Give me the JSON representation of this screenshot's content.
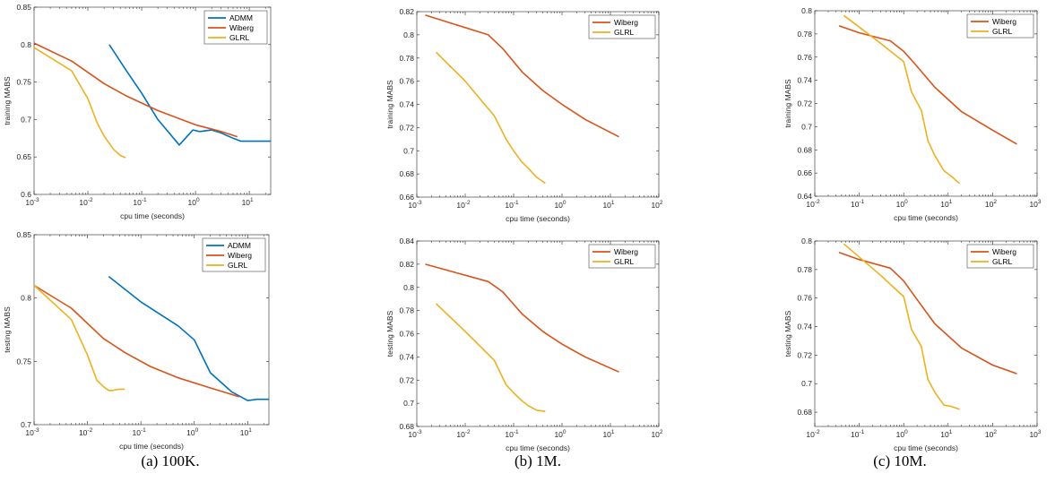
{
  "captions": [
    "(a) 100K.",
    "(b) 1M.",
    "(c) 10M."
  ],
  "colors": {
    "ADMM": "#0072BD",
    "Wiberg": "#D95319",
    "GLRL": "#EDB120",
    "axis": "#262626",
    "text": "#262626"
  },
  "chart_data": [
    {
      "type": "line",
      "id": "a-top",
      "xlabel": "cpu time (seconds)",
      "ylabel": "training MABS",
      "xscale": "log",
      "xlim": [
        0.001,
        25
      ],
      "ylim": [
        0.6,
        0.85
      ],
      "xticks": [
        0.001,
        0.01,
        0.1,
        1,
        10
      ],
      "xtick_labels": [
        [
          "10",
          "-3"
        ],
        [
          "10",
          "-2"
        ],
        [
          "10",
          "-1"
        ],
        [
          "10",
          "0"
        ],
        [
          "10",
          "1"
        ]
      ],
      "yticks": [
        0.6,
        0.65,
        0.7,
        0.75,
        0.8,
        0.85
      ],
      "ytick_labels": [
        "0.6",
        "0.65",
        "0.7",
        "0.75",
        "0.8",
        "0.85"
      ],
      "legend": "top-right",
      "series": [
        {
          "name": "ADMM",
          "x": [
            0.025,
            0.05,
            0.1,
            0.2,
            0.5,
            0.9,
            1.2,
            2,
            3,
            5,
            7,
            10,
            25
          ],
          "y": [
            0.8,
            0.767,
            0.735,
            0.7,
            0.666,
            0.686,
            0.684,
            0.686,
            0.682,
            0.675,
            0.671,
            0.671,
            0.671
          ]
        },
        {
          "name": "Wiberg",
          "x": [
            0.001,
            0.005,
            0.02,
            0.05,
            0.2,
            1,
            3,
            6
          ],
          "y": [
            0.802,
            0.778,
            0.748,
            0.732,
            0.712,
            0.693,
            0.684,
            0.677
          ]
        },
        {
          "name": "GLRL",
          "x": [
            0.001,
            0.005,
            0.01,
            0.015,
            0.02,
            0.03,
            0.04,
            0.05
          ],
          "y": [
            0.796,
            0.765,
            0.728,
            0.695,
            0.678,
            0.66,
            0.652,
            0.649
          ]
        }
      ]
    },
    {
      "type": "line",
      "id": "b-top",
      "xlabel": "cpu time (seconds)",
      "ylabel": "training MABS",
      "xscale": "log",
      "xlim": [
        0.001,
        100
      ],
      "ylim": [
        0.66,
        0.82
      ],
      "xticks": [
        0.001,
        0.01,
        0.1,
        1,
        10,
        100
      ],
      "xtick_labels": [
        [
          "10",
          "-3"
        ],
        [
          "10",
          "-2"
        ],
        [
          "10",
          "-1"
        ],
        [
          "10",
          "0"
        ],
        [
          "10",
          "1"
        ],
        [
          "10",
          "2"
        ]
      ],
      "yticks": [
        0.66,
        0.68,
        0.7,
        0.72,
        0.74,
        0.76,
        0.78,
        0.8,
        0.82
      ],
      "ytick_labels": [
        "0.66",
        "0.68",
        "0.7",
        "0.72",
        "0.74",
        "0.76",
        "0.78",
        "0.8",
        "0.82"
      ],
      "legend": "top-right",
      "series": [
        {
          "name": "Wiberg",
          "x": [
            0.0015,
            0.03,
            0.06,
            0.15,
            0.4,
            1,
            3,
            15
          ],
          "y": [
            0.817,
            0.8,
            0.788,
            0.768,
            0.752,
            0.74,
            0.727,
            0.712
          ]
        },
        {
          "name": "GLRL",
          "x": [
            0.0025,
            0.01,
            0.04,
            0.07,
            0.1,
            0.15,
            0.2,
            0.3,
            0.45
          ],
          "y": [
            0.785,
            0.76,
            0.73,
            0.71,
            0.7,
            0.69,
            0.685,
            0.677,
            0.672
          ]
        }
      ]
    },
    {
      "type": "line",
      "id": "c-top",
      "xlabel": "cpu time (seconds)",
      "ylabel": "training MABS",
      "xscale": "log",
      "xlim": [
        0.01,
        1000
      ],
      "ylim": [
        0.64,
        0.8
      ],
      "xticks": [
        0.01,
        0.1,
        1,
        10,
        100,
        1000
      ],
      "xtick_labels": [
        [
          "10",
          "-2"
        ],
        [
          "10",
          "-1"
        ],
        [
          "10",
          "0"
        ],
        [
          "10",
          "1"
        ],
        [
          "10",
          "2"
        ],
        [
          "10",
          "3"
        ]
      ],
      "yticks": [
        0.64,
        0.66,
        0.68,
        0.7,
        0.72,
        0.74,
        0.76,
        0.78,
        0.8
      ],
      "ytick_labels": [
        "0.64",
        "0.66",
        "0.68",
        "0.7",
        "0.72",
        "0.74",
        "0.76",
        "0.78",
        "0.8"
      ],
      "legend": "top-right",
      "series": [
        {
          "name": "Wiberg",
          "x": [
            0.035,
            0.1,
            0.5,
            1,
            2,
            5,
            20,
            100,
            350
          ],
          "y": [
            0.787,
            0.781,
            0.774,
            0.765,
            0.752,
            0.734,
            0.713,
            0.697,
            0.685
          ]
        },
        {
          "name": "GLRL",
          "x": [
            0.045,
            0.3,
            1,
            1.5,
            2.5,
            3.5,
            5,
            8,
            12,
            18
          ],
          "y": [
            0.796,
            0.772,
            0.756,
            0.73,
            0.714,
            0.688,
            0.675,
            0.662,
            0.657,
            0.651
          ]
        }
      ]
    },
    {
      "type": "line",
      "id": "a-bottom",
      "xlabel": "cpu time (seconds)",
      "ylabel": "testing MABS",
      "xscale": "log",
      "xlim": [
        0.001,
        25
      ],
      "ylim": [
        0.7,
        0.85
      ],
      "xticks": [
        0.001,
        0.01,
        0.1,
        1,
        10
      ],
      "xtick_labels": [
        [
          "10",
          "-3"
        ],
        [
          "10",
          "-2"
        ],
        [
          "10",
          "-1"
        ],
        [
          "10",
          "0"
        ],
        [
          "10",
          "1"
        ]
      ],
      "yticks": [
        0.7,
        0.75,
        0.8,
        0.85
      ],
      "ytick_labels": [
        "0.7",
        "0.75",
        "0.8",
        "0.85"
      ],
      "legend": "top-right",
      "series": [
        {
          "name": "ADMM",
          "x": [
            0.025,
            0.1,
            0.5,
            1,
            2,
            5,
            10,
            15,
            25
          ],
          "y": [
            0.817,
            0.797,
            0.778,
            0.767,
            0.741,
            0.726,
            0.719,
            0.72,
            0.72
          ]
        },
        {
          "name": "Wiberg",
          "x": [
            0.001,
            0.005,
            0.02,
            0.05,
            0.15,
            0.5,
            2,
            7
          ],
          "y": [
            0.81,
            0.792,
            0.768,
            0.757,
            0.746,
            0.737,
            0.729,
            0.722
          ]
        },
        {
          "name": "GLRL",
          "x": [
            0.001,
            0.005,
            0.01,
            0.015,
            0.02,
            0.025,
            0.03,
            0.04,
            0.05
          ],
          "y": [
            0.81,
            0.783,
            0.755,
            0.735,
            0.73,
            0.727,
            0.727,
            0.728,
            0.728
          ]
        }
      ]
    },
    {
      "type": "line",
      "id": "b-bottom",
      "xlabel": "cpu time (seconds)",
      "ylabel": "testing MABS",
      "xscale": "log",
      "xlim": [
        0.001,
        100
      ],
      "ylim": [
        0.68,
        0.84
      ],
      "xticks": [
        0.001,
        0.01,
        0.1,
        1,
        10,
        100
      ],
      "xtick_labels": [
        [
          "10",
          "-3"
        ],
        [
          "10",
          "-2"
        ],
        [
          "10",
          "-1"
        ],
        [
          "10",
          "0"
        ],
        [
          "10",
          "1"
        ],
        [
          "10",
          "2"
        ]
      ],
      "yticks": [
        0.68,
        0.7,
        0.72,
        0.74,
        0.76,
        0.78,
        0.8,
        0.82,
        0.84
      ],
      "ytick_labels": [
        "0.68",
        "0.7",
        "0.72",
        "0.74",
        "0.76",
        "0.78",
        "0.8",
        "0.82",
        "0.84"
      ],
      "legend": "top-right",
      "series": [
        {
          "name": "Wiberg",
          "x": [
            0.0015,
            0.03,
            0.06,
            0.15,
            0.4,
            1,
            3,
            15
          ],
          "y": [
            0.82,
            0.805,
            0.796,
            0.777,
            0.762,
            0.751,
            0.74,
            0.727
          ]
        },
        {
          "name": "GLRL",
          "x": [
            0.0025,
            0.01,
            0.04,
            0.07,
            0.1,
            0.15,
            0.2,
            0.3,
            0.45
          ],
          "y": [
            0.786,
            0.762,
            0.737,
            0.716,
            0.709,
            0.702,
            0.698,
            0.694,
            0.693
          ]
        }
      ]
    },
    {
      "type": "line",
      "id": "c-bottom",
      "xlabel": "cpu time (seconds)",
      "ylabel": "testing MABS",
      "xscale": "log",
      "xlim": [
        0.01,
        1000
      ],
      "ylim": [
        0.67,
        0.8
      ],
      "xticks": [
        0.01,
        0.1,
        1,
        10,
        100,
        1000
      ],
      "xtick_labels": [
        [
          "10",
          "-2"
        ],
        [
          "10",
          "-1"
        ],
        [
          "10",
          "0"
        ],
        [
          "10",
          "1"
        ],
        [
          "10",
          "2"
        ],
        [
          "10",
          "3"
        ]
      ],
      "yticks": [
        0.68,
        0.7,
        0.72,
        0.74,
        0.76,
        0.78,
        0.8
      ],
      "ytick_labels": [
        "0.68",
        "0.7",
        "0.72",
        "0.74",
        "0.76",
        "0.78",
        "0.8"
      ],
      "legend": "top-right",
      "series": [
        {
          "name": "Wiberg",
          "x": [
            0.035,
            0.1,
            0.5,
            1,
            2,
            5,
            20,
            100,
            350
          ],
          "y": [
            0.792,
            0.787,
            0.781,
            0.772,
            0.759,
            0.742,
            0.725,
            0.713,
            0.707
          ]
        },
        {
          "name": "GLRL",
          "x": [
            0.045,
            0.3,
            1,
            1.5,
            2.5,
            3.5,
            5,
            8,
            12,
            18
          ],
          "y": [
            0.798,
            0.776,
            0.761,
            0.738,
            0.726,
            0.703,
            0.694,
            0.685,
            0.684,
            0.682
          ]
        }
      ]
    }
  ]
}
